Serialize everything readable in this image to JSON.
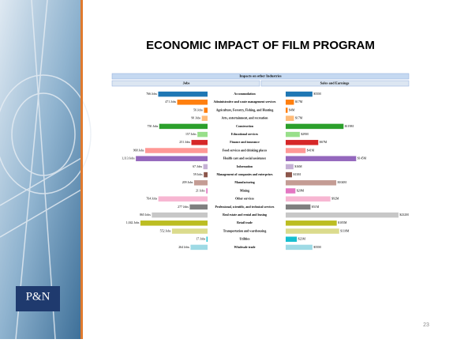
{
  "slide": {
    "title": "ECONOMIC IMPACT OF FILM PROGRAM",
    "page_number": "23",
    "logo": "P&N"
  },
  "chart_data": {
    "type": "butterfly-bar",
    "title": "Impacts on other Industries",
    "categories": [
      "Accommodation",
      "Administrative and waste management services",
      "Agriculture, Forestry, Fishing, and Hunting",
      "Arts, entertainment, and recreation",
      "Construction",
      "Educational services",
      "Finance and insurance",
      "Food services and drinking places",
      "Health care and social assistance",
      "Information",
      "Management of companies and enterprises",
      "Manufacturing",
      "Mining",
      "Other services",
      "Professional, scientific, and technical services",
      "Real estate and rental and leasing",
      "Retail trade",
      "Transportation and warehousing",
      "Utilities",
      "Wholesale trade"
    ],
    "colors": [
      "#1f77b4",
      "#ff7f0e",
      "#ff7f0e",
      "#ffbb78",
      "#2ca02c",
      "#98df8a",
      "#d62728",
      "#ff9896",
      "#9467bd",
      "#c5b0d5",
      "#8c564b",
      "#c49c94",
      "#e377c2",
      "#f7b6d2",
      "#7f7f7f",
      "#c7c7c7",
      "#bcbd22",
      "#dbdb8d",
      "#17becf",
      "#9edae5"
    ],
    "series": [
      {
        "name": "Jobs",
        "xlim": [
          0,
          1200
        ],
        "values": [
          766,
          471,
          56,
          90,
          750,
          157,
          251,
          968,
          1113,
          67,
          59,
          209,
          21,
          764,
          277,
          865,
          1042,
          552,
          17,
          264
        ],
        "value_labels": [
          "766 Jobs",
          "471 Jobs",
          "56 Jobs",
          "90 Jobs",
          "750 Jobs",
          "157 Jobs",
          "251 Jobs",
          "968 Jobs",
          "1,113 Jobs",
          "67 Jobs",
          "59 Jobs",
          "209 Jobs",
          "21 Jobs",
          "764 Jobs",
          "277 Jobs",
          "865 Jobs",
          "1,042 Jobs",
          "552 Jobs",
          "17 Jobs",
          "264 Jobs"
        ]
      },
      {
        "name": "Sales and Earnings",
        "xlim": [
          0,
          250
        ],
        "values": [
          55,
          17,
          4,
          17,
          119,
          29,
          67,
          41,
          145,
          16,
          13,
          104,
          20,
          92,
          51,
          232,
          105,
          110,
          23,
          55
        ],
        "value_labels": [
          "$55M",
          "$17M",
          "$4M",
          "$17M",
          "$119M",
          "$29M",
          "$67M",
          "$41M",
          "$145M",
          "$16M",
          "$13M",
          "$104M",
          "$20M",
          "$92M",
          "$51M",
          "$232M",
          "$105M",
          "$110M",
          "$23M",
          "$55M"
        ]
      }
    ]
  }
}
